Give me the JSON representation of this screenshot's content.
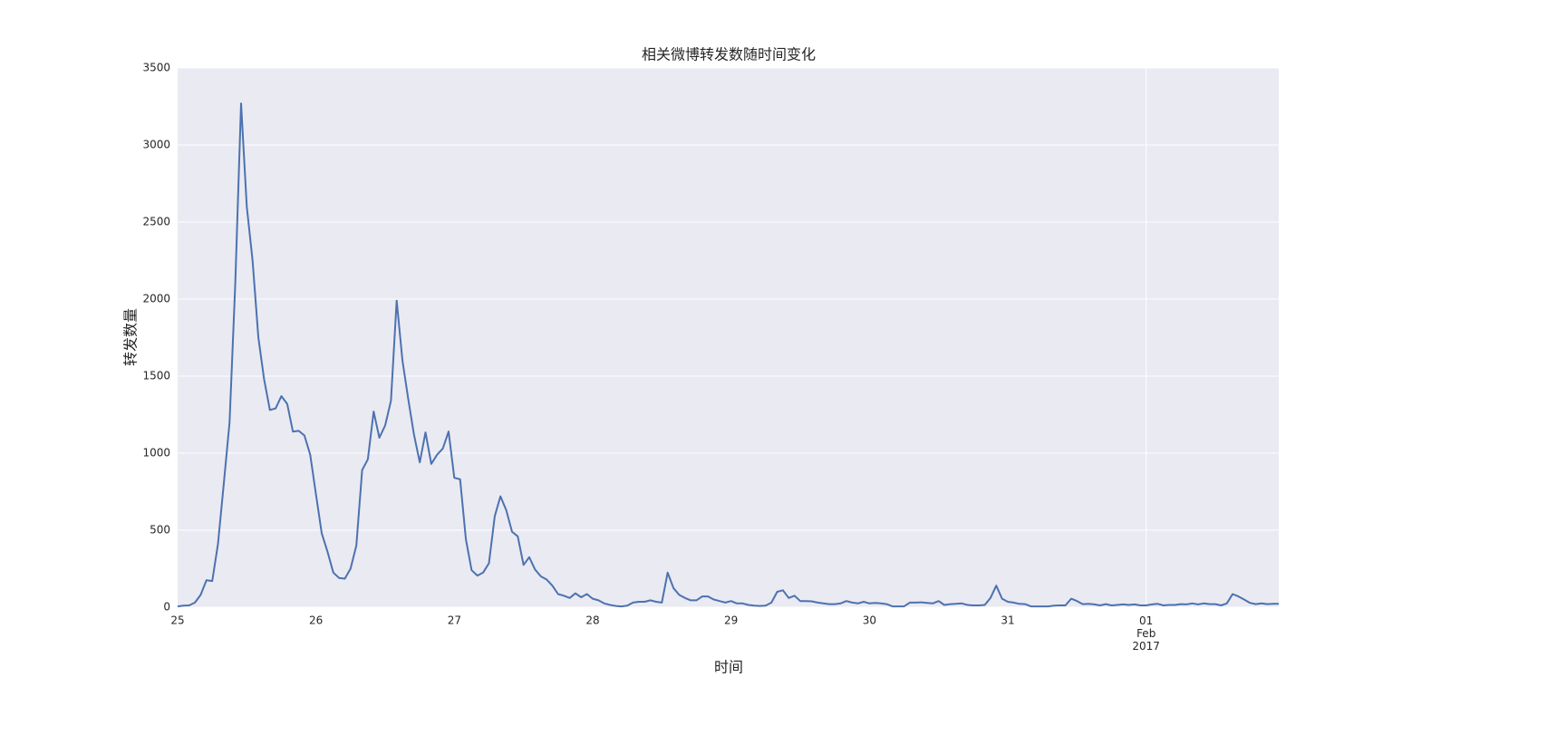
{
  "chart_data": {
    "type": "line",
    "title": "相关微博转发数随时间变化",
    "xlabel": "时间",
    "ylabel": "转发数量",
    "series": [
      {
        "name": "转发数量",
        "color": "#4c72b0",
        "values": [
          5,
          10,
          12,
          30,
          80,
          175,
          170,
          410,
          800,
          1200,
          2100,
          3270,
          2600,
          2250,
          1750,
          1480,
          1280,
          1290,
          1370,
          1320,
          1140,
          1145,
          1115,
          990,
          730,
          480,
          360,
          225,
          190,
          185,
          250,
          400,
          890,
          960,
          1270,
          1100,
          1180,
          1340,
          1990,
          1600,
          1350,
          1120,
          940,
          1135,
          930,
          990,
          1030,
          1140,
          840,
          830,
          440,
          240,
          205,
          225,
          285,
          590,
          720,
          630,
          490,
          460,
          275,
          325,
          245,
          200,
          180,
          140,
          85,
          75,
          60,
          90,
          65,
          85,
          55,
          45,
          25,
          15,
          8,
          5,
          10,
          30,
          35,
          35,
          45,
          35,
          30,
          225,
          125,
          80,
          60,
          45,
          45,
          70,
          70,
          50,
          40,
          30,
          40,
          25,
          25,
          15,
          10,
          8,
          10,
          30,
          100,
          110,
          60,
          75,
          40,
          40,
          38,
          30,
          25,
          20,
          20,
          25,
          40,
          30,
          25,
          35,
          25,
          28,
          25,
          20,
          5,
          5,
          5,
          30,
          30,
          32,
          28,
          25,
          40,
          15,
          20,
          22,
          25,
          15,
          12,
          12,
          15,
          60,
          140,
          55,
          35,
          30,
          22,
          20,
          5,
          5,
          5,
          5,
          10,
          12,
          12,
          55,
          40,
          20,
          22,
          18,
          12,
          20,
          12,
          15,
          18,
          15,
          18,
          12,
          12,
          18,
          22,
          12,
          15,
          15,
          20,
          18,
          25,
          18,
          25,
          20,
          20,
          12,
          25,
          85,
          70,
          50,
          28,
          20,
          25,
          20,
          22,
          22
        ]
      }
    ],
    "xlim": [
      0,
      191
    ],
    "xticks": [
      {
        "value": 0,
        "label": "25"
      },
      {
        "value": 24,
        "label": "26"
      },
      {
        "value": 48,
        "label": "27"
      },
      {
        "value": 72,
        "label": "28"
      },
      {
        "value": 96,
        "label": "29"
      },
      {
        "value": 120,
        "label": "30"
      },
      {
        "value": 144,
        "label": "31"
      },
      {
        "value": 168,
        "label": "01\nFeb\n2017",
        "grid": true
      }
    ],
    "ylim": [
      0,
      3500
    ],
    "yticks": [
      0,
      500,
      1000,
      1500,
      2000,
      2500,
      3000,
      3500
    ],
    "grid": true
  }
}
